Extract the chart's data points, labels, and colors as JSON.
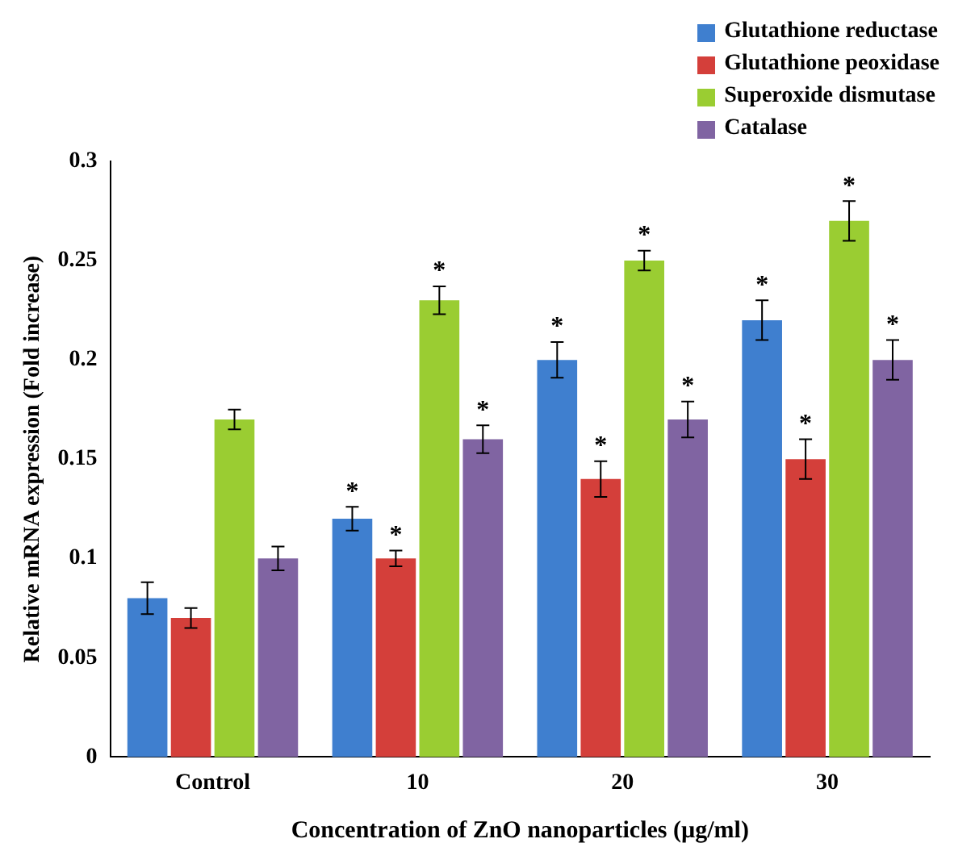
{
  "chart_data": {
    "type": "bar",
    "xlabel": "Concentration of ZnO nanoparticles (µg/ml)",
    "ylabel": "Relative mRNA expression (Fold increase)",
    "categories": [
      "Control",
      "10",
      "20",
      "30"
    ],
    "series": [
      {
        "name": "Glutathione reductase",
        "color": "#3f7fcf",
        "values": [
          0.08,
          0.12,
          0.2,
          0.22
        ],
        "errors": [
          0.008,
          0.006,
          0.009,
          0.01
        ],
        "value_labels": [
          null,
          "*",
          "*",
          "*"
        ]
      },
      {
        "name": "Glutathione peoxidase",
        "color": "#d43f3a",
        "values": [
          0.07,
          0.1,
          0.14,
          0.15
        ],
        "errors": [
          0.005,
          0.004,
          0.009,
          0.01
        ],
        "value_labels": [
          null,
          "*",
          "*",
          "*"
        ]
      },
      {
        "name": "Superoxide dismutase",
        "color": "#9acd32",
        "values": [
          0.17,
          0.23,
          0.25,
          0.27
        ],
        "errors": [
          0.005,
          0.007,
          0.005,
          0.01
        ],
        "value_labels": [
          null,
          "*",
          "*",
          "*"
        ]
      },
      {
        "name": "Catalase",
        "color": "#8064a2",
        "values": [
          0.1,
          0.16,
          0.17,
          0.2
        ],
        "errors": [
          0.006,
          0.007,
          0.009,
          0.01
        ],
        "value_labels": [
          null,
          "*",
          "*",
          "*"
        ]
      }
    ],
    "ylim": [
      0,
      0.3
    ],
    "yticks": [
      0,
      0.05,
      0.1,
      0.15,
      0.2,
      0.25,
      0.3
    ],
    "grid": false,
    "legend": "top right"
  }
}
